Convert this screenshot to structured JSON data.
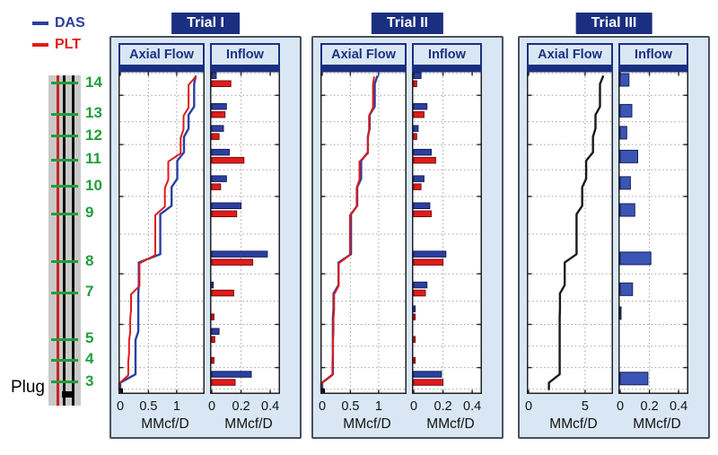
{
  "colors": {
    "navy": "#1a2f80",
    "panel_bg": "#d9e7f5",
    "panel_border": "#49505e",
    "grid": "#9aa0a8",
    "das_blue": "#2b3f9f",
    "das_blue_dark": "#16205e",
    "plt_red": "#e01b1b",
    "plt_red_dark": "#7a0d0d",
    "black_curve": "#1a1a1a",
    "zone_green": "#1f9e3c",
    "casing_gray": "#c9c9c9"
  },
  "legend": {
    "items": [
      {
        "label": "DAS",
        "color": "#2b3f9f"
      },
      {
        "label": "PLT",
        "color": "#e01b1b"
      }
    ]
  },
  "wellbore": {
    "plug_label": "Plug",
    "zones": [
      {
        "label": "14",
        "t": 0.025
      },
      {
        "label": "13",
        "t": 0.121
      },
      {
        "label": "12",
        "t": 0.189
      },
      {
        "label": "11",
        "t": 0.263
      },
      {
        "label": "10",
        "t": 0.345
      },
      {
        "label": "9",
        "t": 0.429
      },
      {
        "label": "8",
        "t": 0.579
      },
      {
        "label": "7",
        "t": 0.675
      },
      {
        "label": "",
        "t": 0.749
      },
      {
        "label": "5",
        "t": 0.819
      },
      {
        "label": "4",
        "t": 0.884
      },
      {
        "label": "3",
        "t": 0.952
      }
    ]
  },
  "chart_data": [
    {
      "trial": "Trial I",
      "axial": {
        "type": "line",
        "title": "Axial Flow",
        "xlabel": "MMcf/D",
        "xticks": [
          0,
          0.5,
          1
        ],
        "xtick_labels": [
          "0",
          "0.5",
          "1"
        ],
        "xmax": 1.4,
        "vgrid": [
          0.5,
          1
        ],
        "curve_start": 0,
        "curve_scale": 1,
        "origin_marker": true,
        "series": [
          {
            "name": "DAS",
            "color": "#2b3f9f"
          },
          {
            "name": "PLT",
            "color": "#e01b1b"
          }
        ],
        "description": "Cumulative axial flow vs depth, staircase rising at each perforation zone"
      },
      "inflow": {
        "type": "bar",
        "title": "Inflow",
        "xlabel": "MMcf/D",
        "xticks": [
          0,
          0.2,
          0.4
        ],
        "xtick_labels": [
          "0",
          "0.2",
          "0.4"
        ],
        "xmax": 0.43,
        "vgrid": [
          0.2
        ],
        "zones": [
          "14",
          "13",
          "12",
          "11",
          "10",
          "9",
          "8",
          "7",
          "",
          "5",
          "4",
          "3"
        ],
        "series": [
          {
            "name": "DAS",
            "color": "#2b3f9f",
            "values": [
              0.03,
              0.1,
              0.08,
              0.12,
              0.1,
              0.2,
              0.38,
              0.01,
              0.0,
              0.05,
              0.0,
              0.27
            ]
          },
          {
            "name": "PLT",
            "color": "#e01b1b",
            "values": [
              0.13,
              0.09,
              0.05,
              0.22,
              0.06,
              0.17,
              0.28,
              0.15,
              0.015,
              0.02,
              0.015,
              0.16
            ]
          }
        ]
      }
    },
    {
      "trial": "Trial II",
      "axial": {
        "type": "line",
        "title": "Axial Flow",
        "xlabel": "MMcf/D",
        "xticks": [
          0,
          0.5,
          1
        ],
        "xtick_labels": [
          "0",
          "0.5",
          "1"
        ],
        "xmax": 1.4,
        "vgrid": [
          0.5,
          1
        ],
        "curve_start": 0,
        "curve_scale": 1,
        "origin_marker": true,
        "series": [
          {
            "name": "DAS",
            "color": "#2b3f9f"
          },
          {
            "name": "PLT",
            "color": "#e01b1b"
          }
        ],
        "description": "Cumulative axial flow vs depth, staircase rising at each perforation zone"
      },
      "inflow": {
        "type": "bar",
        "title": "Inflow",
        "xlabel": "MMcf/D",
        "xticks": [
          0,
          0.2,
          0.4
        ],
        "xtick_labels": [
          "0",
          "0.2",
          "0.4"
        ],
        "xmax": 0.43,
        "vgrid": [
          0.2
        ],
        "zones": [
          "14",
          "13",
          "12",
          "11",
          "10",
          "9",
          "8",
          "7",
          "",
          "5",
          "4",
          "3"
        ],
        "series": [
          {
            "name": "DAS",
            "color": "#2b3f9f",
            "values": [
              0.05,
              0.09,
              0.03,
              0.12,
              0.07,
              0.11,
              0.22,
              0.09,
              0.01,
              0.0,
              0.0,
              0.19
            ]
          },
          {
            "name": "PLT",
            "color": "#e01b1b",
            "values": [
              0.02,
              0.07,
              0.02,
              0.15,
              0.05,
              0.12,
              0.2,
              0.08,
              0.01,
              0.01,
              0.01,
              0.2
            ]
          }
        ]
      }
    },
    {
      "trial": "Trial III",
      "axial": {
        "type": "line",
        "title": "Axial Flow",
        "xlabel": "MMcf/D",
        "xticks": [
          0,
          5
        ],
        "xtick_labels": [
          "0",
          "5"
        ],
        "xmax": 7,
        "vgrid": [
          5
        ],
        "curve_start": 1.8,
        "curve_scale": 5,
        "origin_marker": false,
        "series": [
          {
            "name": "DAS",
            "color": "#1a1a1a"
          }
        ],
        "description": "Cumulative axial flow vs depth, single black DAS curve"
      },
      "inflow": {
        "type": "bar",
        "title": "Inflow",
        "xlabel": "MMcf/D",
        "xticks": [
          0,
          0.2,
          0.4
        ],
        "xtick_labels": [
          "0",
          "0.2",
          "0.4"
        ],
        "xmax": 0.43,
        "vgrid": [
          0.2
        ],
        "zones": [
          "14",
          "13",
          "12",
          "11",
          "10",
          "9",
          "8",
          "7",
          "",
          "5",
          "4",
          "3"
        ],
        "series": [
          {
            "name": "DAS",
            "color": "#3a55b4",
            "values": [
              0.06,
              0.08,
              0.045,
              0.12,
              0.07,
              0.1,
              0.21,
              0.085,
              0.005,
              0.0,
              0.0,
              0.19
            ]
          }
        ]
      }
    }
  ]
}
